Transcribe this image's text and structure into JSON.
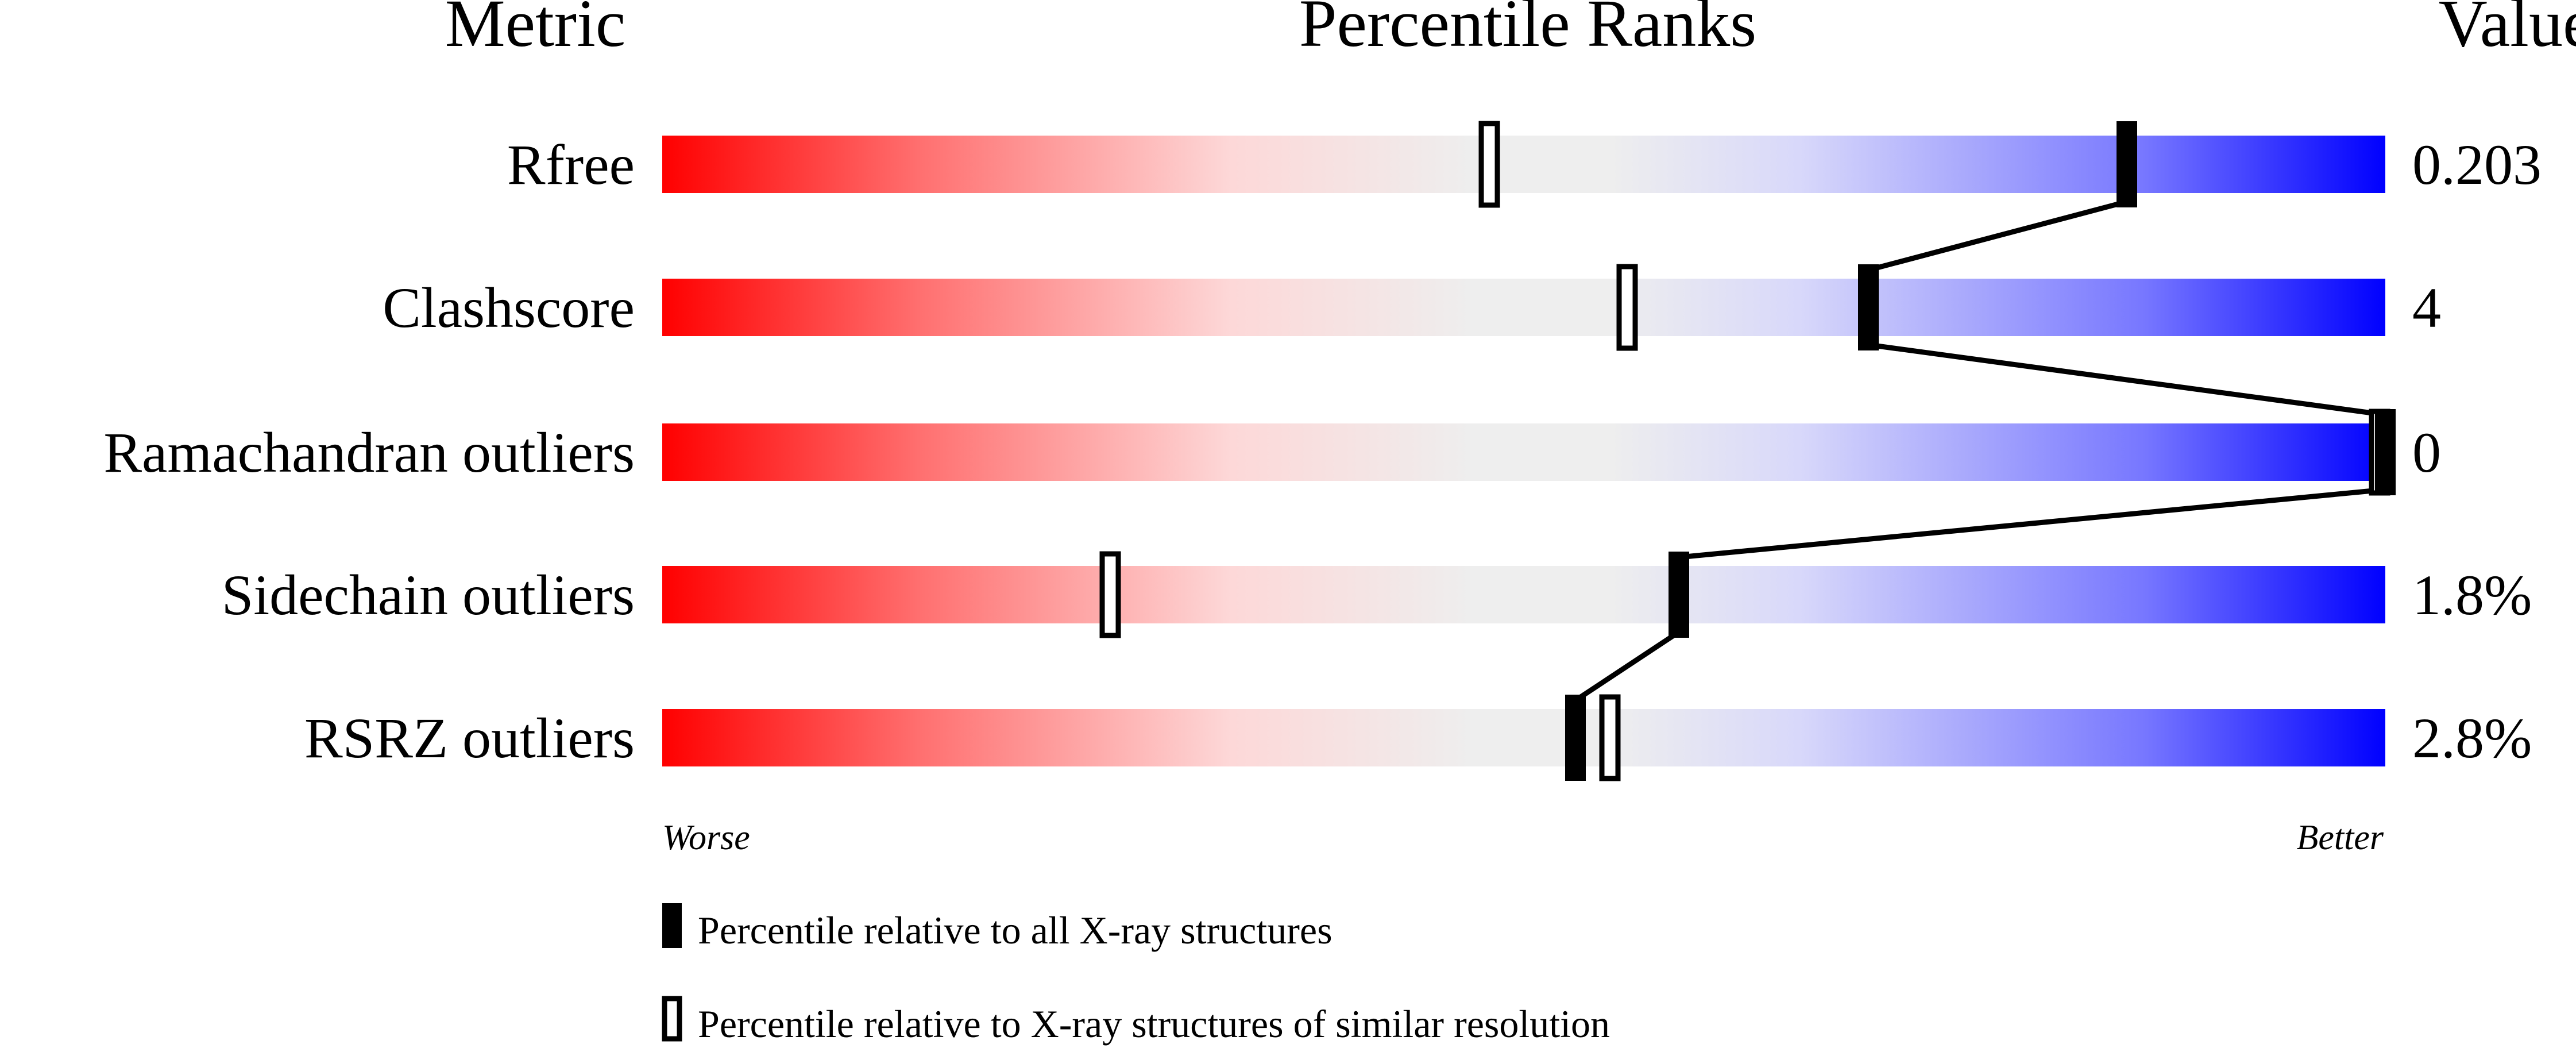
{
  "chart_data": {
    "type": "percentile-bar",
    "headers": {
      "metric": "Metric",
      "ranks": "Percentile Ranks",
      "value": "Value"
    },
    "xlim": [
      0,
      100
    ],
    "rows": [
      {
        "metric": "Rfree",
        "value": "0.203",
        "percentile_all": 85,
        "percentile_similar": 48
      },
      {
        "metric": "Clashscore",
        "value": "4",
        "percentile_all": 70,
        "percentile_similar": 56
      },
      {
        "metric": "Ramachandran outliers",
        "value": "0",
        "percentile_all": 100,
        "percentile_similar": 100
      },
      {
        "metric": "Sidechain outliers",
        "value": "1.8%",
        "percentile_all": 59,
        "percentile_similar": 26
      },
      {
        "metric": "RSRZ outliers",
        "value": "2.8%",
        "percentile_all": 53,
        "percentile_similar": 55
      }
    ],
    "axis": {
      "worse": "Worse",
      "better": "Better"
    },
    "legend": {
      "all": "Percentile relative to all X-ray structures",
      "similar": "Percentile relative to X-ray structures of similar resolution"
    },
    "colors": {
      "worse": "#ff0000",
      "mid": "#eeeeee",
      "better": "#0000ff"
    }
  }
}
